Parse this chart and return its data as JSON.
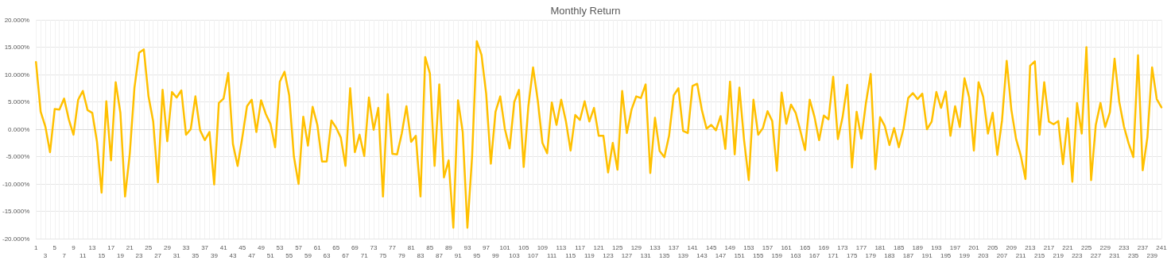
{
  "chart_data": {
    "type": "line",
    "title": "Monthly Return",
    "categories": [
      "1",
      null,
      "3",
      null,
      "5",
      null,
      "7",
      null,
      "9",
      null,
      "11",
      null,
      "13",
      null,
      "15",
      null,
      "17",
      null,
      "19",
      null,
      "21",
      null,
      "23",
      null,
      "25",
      null,
      "27",
      null,
      "29",
      null,
      "31",
      null,
      "33",
      null,
      "35",
      null,
      "37",
      null,
      "39",
      null,
      "41",
      null,
      "43",
      null,
      "45",
      null,
      "47",
      null,
      "49",
      null,
      "51",
      null,
      "53",
      null,
      "55",
      null,
      "57",
      null,
      "59",
      null,
      "61",
      null,
      "63",
      null,
      "65",
      null,
      "67",
      null,
      "69",
      null,
      "71",
      null,
      "73",
      null,
      "75",
      null,
      "77",
      null,
      "79",
      null,
      "81",
      null,
      "83",
      null,
      "85",
      null,
      "87",
      null,
      "89",
      null,
      "91",
      null,
      "93",
      null,
      "95",
      null,
      "97",
      null,
      "99",
      null,
      "101",
      null,
      "103",
      null,
      "105",
      null,
      "107",
      null,
      "109",
      null,
      "111",
      null,
      "113",
      null,
      "115",
      null,
      "117",
      null,
      "119",
      null,
      "121",
      null,
      "123",
      null,
      "125",
      null,
      "127",
      null,
      "129",
      null,
      "131",
      null,
      "133",
      null,
      "135",
      null,
      "137",
      null,
      "139",
      null,
      "141",
      null,
      "143",
      null,
      "145",
      null,
      "147",
      null,
      "149",
      null,
      "151",
      null,
      "153",
      null,
      "155",
      null,
      "157",
      null,
      "159",
      null,
      "161",
      null,
      "163",
      null,
      "165",
      null,
      "167",
      null,
      "169",
      null,
      "171",
      null,
      "173",
      null,
      "175",
      null,
      "177",
      null,
      "179",
      null,
      "181",
      null,
      "183",
      null,
      "185",
      null,
      "187",
      null,
      "189",
      null,
      "191",
      null,
      "193",
      null,
      "195",
      null,
      "197",
      null,
      "199",
      null,
      "201",
      null,
      "203",
      null,
      "205",
      null,
      "207",
      null,
      "209",
      null,
      "211",
      null,
      "213",
      null,
      "215",
      null,
      "217",
      null,
      "219",
      null,
      "221",
      null,
      "223",
      null,
      "225",
      null,
      "227",
      null,
      "229",
      null,
      "231",
      null,
      "233",
      null,
      "235",
      null,
      "237",
      null,
      "239",
      null,
      "241"
    ],
    "series": [
      {
        "color": "#ffc000",
        "values": [
          12.3,
          3.2,
          0.5,
          -4.2,
          3.7,
          3.6,
          5.6,
          1.8,
          -1.0,
          5.4,
          7.0,
          3.5,
          3.0,
          -2.2,
          -11.6,
          5.1,
          -5.7,
          8.6,
          3.0,
          -12.3,
          -4.5,
          7.6,
          14.0,
          14.6,
          6.0,
          1.4,
          -9.7,
          7.2,
          -2.2,
          6.8,
          5.8,
          7.1,
          -1.0,
          0.0,
          6.0,
          -0.2,
          -2.0,
          -0.5,
          -10.1,
          4.8,
          5.6,
          10.3,
          -2.7,
          -6.7,
          -1.5,
          4.2,
          5.4,
          -0.5,
          5.3,
          2.8,
          1.0,
          -3.3,
          8.7,
          10.5,
          6.2,
          -5.0,
          -10.0,
          2.3,
          -3.0,
          4.1,
          0.8,
          -5.9,
          -5.9,
          1.6,
          0.3,
          -1.5,
          -6.7,
          7.5,
          -4.2,
          -1.0,
          -4.9,
          5.8,
          -0.1,
          3.9,
          -12.3,
          6.4,
          -4.5,
          -4.6,
          -0.8,
          4.2,
          -2.3,
          -1.2,
          -12.3,
          13.2,
          10.2,
          -6.7,
          8.2,
          -8.8,
          -5.7,
          -18.0,
          5.3,
          -0.5,
          -18.0,
          -5.0,
          16.1,
          13.6,
          6.5,
          -6.3,
          3.2,
          6.0,
          0.0,
          -3.5,
          5.0,
          7.2,
          -6.9,
          4.2,
          11.3,
          5.3,
          -2.5,
          -4.4,
          4.9,
          0.8,
          5.4,
          1.5,
          -3.9,
          2.6,
          1.7,
          5.1,
          1.4,
          3.9,
          -1.2,
          -1.2,
          -7.9,
          -2.5,
          -7.4,
          7.0,
          -0.7,
          3.6,
          6.0,
          5.7,
          8.2,
          -8.0,
          2.1,
          -4.0,
          -5.1,
          -1.2,
          6.2,
          7.5,
          -0.3,
          -0.7,
          7.9,
          8.3,
          3.5,
          0.1,
          0.8,
          -0.2,
          2.4,
          -3.6,
          8.7,
          -4.6,
          7.6,
          -2.0,
          -9.3,
          5.4,
          -1.0,
          0.2,
          3.3,
          1.5,
          -7.6,
          6.7,
          1.0,
          4.5,
          3.0,
          -0.3,
          -3.8,
          5.4,
          2.3,
          -2.0,
          2.5,
          1.8,
          9.6,
          -1.8,
          2.2,
          8.1,
          -7.0,
          3.2,
          -1.7,
          4.9,
          10.1,
          -7.3,
          2.2,
          0.6,
          -2.9,
          0.2,
          -3.3,
          0.1,
          5.7,
          6.6,
          5.5,
          6.5,
          0.0,
          1.4,
          6.8,
          3.9,
          6.9,
          -1.2,
          4.2,
          0.4,
          9.3,
          5.8,
          -3.9,
          8.6,
          5.9,
          -0.8,
          3.0,
          -4.7,
          1.6,
          12.5,
          3.5,
          -1.8,
          -4.8,
          -9.1,
          11.6,
          12.4,
          -1.0,
          8.6,
          1.4,
          0.9,
          1.5,
          -6.4,
          2.0,
          -9.6,
          4.8,
          -0.8,
          15.0,
          -9.3,
          0.8,
          4.8,
          0.4,
          3.1,
          12.9,
          5.0,
          0.5,
          -2.6,
          -5.1,
          13.5,
          -7.5,
          -1.5,
          11.3,
          5.5,
          4.0
        ]
      }
    ],
    "ylim": [
      -20,
      20
    ],
    "yticks": [
      {
        "value": -20,
        "label": "-20.000%"
      },
      {
        "value": -15,
        "label": "-15.000%"
      },
      {
        "value": -10,
        "label": "-10.000%"
      },
      {
        "value": -5,
        "label": "-5.000%"
      },
      {
        "value": 0,
        "label": "0.000%"
      },
      {
        "value": 5,
        "label": "5.000%"
      },
      {
        "value": 10,
        "label": "10.000%"
      },
      {
        "value": 15,
        "label": "15.000%"
      },
      {
        "value": 20,
        "label": "20.000%"
      }
    ],
    "grid": true,
    "marker": "none",
    "line_style": "solid"
  }
}
